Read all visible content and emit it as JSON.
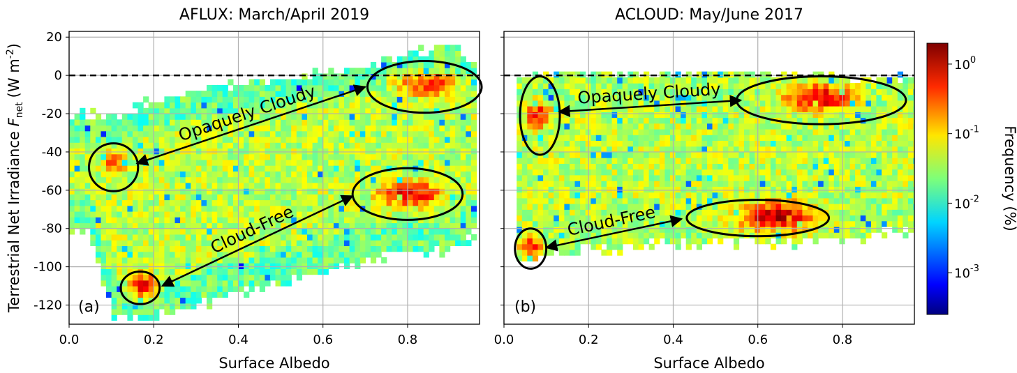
{
  "chart_data": [
    {
      "type": "heatmap",
      "panel_label": "(a)",
      "title": "AFLUX: March/April 2019",
      "xlabel": "Surface Albedo",
      "ylabel": "Terrestrial Net Irradiance",
      "ylabel_symbol": "F",
      "ylabel_subscript": "net",
      "ylabel_unit_open": "(W m",
      "ylabel_unit_exp": "-2",
      "ylabel_unit_close": ")",
      "xlim": [
        0.0,
        0.97
      ],
      "ylim": [
        -130,
        23
      ],
      "xticks": [
        "0.0",
        "0.2",
        "0.4",
        "0.6",
        "0.8"
      ],
      "xtick_values": [
        0.0,
        0.2,
        0.4,
        0.6,
        0.8
      ],
      "yticks": [
        "20",
        "0",
        "-20",
        "-40",
        "-60",
        "-80",
        "-100",
        "-120"
      ],
      "ytick_values": [
        20,
        0,
        -20,
        -40,
        -60,
        -80,
        -100,
        -120
      ],
      "grid": true,
      "reference_line_y": 0,
      "color_scale": "log",
      "data_extent": {
        "x": [
          0.0,
          0.96
        ],
        "y": [
          -128,
          16
        ]
      },
      "envelope": {
        "x": [
          0.04,
          0.1,
          0.2,
          0.3,
          0.4,
          0.5,
          0.6,
          0.7,
          0.8,
          0.9,
          0.96
        ],
        "top": [
          -22,
          -22,
          -14,
          -10,
          -6,
          -3,
          0,
          4,
          10,
          14,
          2
        ],
        "bottom": [
          -80,
          -125,
          -125,
          -118,
          -112,
          -106,
          -100,
          -95,
          -92,
          -90,
          -80
        ]
      },
      "hotspots": [
        {
          "label": "Opaquely Cloudy",
          "x": 0.1,
          "y": -47,
          "peak_log10": -0.45
        },
        {
          "label": "Opaquely Cloudy",
          "x": 0.84,
          "y": -6,
          "peak_log10": -0.35
        },
        {
          "label": "Cloud-Free",
          "x": 0.8,
          "y": -63,
          "peak_log10": -0.15
        },
        {
          "label": "Cloud-Free",
          "x": 0.17,
          "y": -111,
          "peak_log10": -0.3
        }
      ],
      "annotations": [
        {
          "text": "Opaquely Cloudy",
          "from": [
            0.16,
            -46
          ],
          "to": [
            0.7,
            -6
          ]
        },
        {
          "text": "Cloud-Free",
          "from": [
            0.22,
            -110
          ],
          "to": [
            0.67,
            -63
          ]
        }
      ],
      "ellipses": [
        {
          "cx": 0.105,
          "cy": -48,
          "rx": 0.058,
          "ry": 12.5
        },
        {
          "cx": 0.84,
          "cy": -6,
          "rx": 0.135,
          "ry": 13.5
        },
        {
          "cx": 0.8,
          "cy": -62,
          "rx": 0.13,
          "ry": 13.5
        },
        {
          "cx": 0.168,
          "cy": -111,
          "rx": 0.046,
          "ry": 8.5
        }
      ]
    },
    {
      "type": "heatmap",
      "panel_label": "(b)",
      "title": "ACLOUD: May/June 2017",
      "xlabel": "Surface Albedo",
      "xlim": [
        0.0,
        0.97
      ],
      "ylim": [
        -130,
        23
      ],
      "xticks": [
        "0.0",
        "0.2",
        "0.4",
        "0.6",
        "0.8"
      ],
      "xtick_values": [
        0.0,
        0.2,
        0.4,
        0.6,
        0.8
      ],
      "ytick_values": [
        20,
        0,
        -20,
        -40,
        -60,
        -80,
        -100,
        -120
      ],
      "grid": true,
      "reference_line_y": 0,
      "color_scale": "log",
      "data_extent": {
        "x": [
          0.03,
          0.97
        ],
        "y": [
          -97,
          2
        ]
      },
      "envelope": {
        "x": [
          0.03,
          0.1,
          0.3,
          0.5,
          0.7,
          0.9,
          0.97
        ],
        "top": [
          -2,
          0,
          0,
          0,
          0,
          -3,
          -5
        ],
        "bottom": [
          -96,
          -92,
          -88,
          -86,
          -86,
          -81,
          -81
        ]
      },
      "hotspots": [
        {
          "label": "Opaquely Cloudy",
          "x": 0.075,
          "y": -22,
          "peak_log10": -0.3
        },
        {
          "label": "Opaquely Cloudy",
          "x": 0.74,
          "y": -13,
          "peak_log10": -0.05
        },
        {
          "label": "Cloud-Free",
          "x": 0.64,
          "y": -75,
          "peak_log10": 0.1
        },
        {
          "label": "Cloud-Free",
          "x": 0.06,
          "y": -91,
          "peak_log10": -0.4
        }
      ],
      "annotations": [
        {
          "text": "Opaquely Cloudy",
          "from": [
            0.13,
            -19
          ],
          "to": [
            0.56,
            -13
          ]
        },
        {
          "text": "Cloud-Free",
          "from": [
            0.1,
            -90
          ],
          "to": [
            0.42,
            -75
          ]
        }
      ],
      "ellipses": [
        {
          "cx": 0.085,
          "cy": -21,
          "rx": 0.047,
          "ry": 20.5
        },
        {
          "cx": 0.75,
          "cy": -13,
          "rx": 0.2,
          "ry": 12.5
        },
        {
          "cx": 0.6,
          "cy": -74.5,
          "rx": 0.168,
          "ry": 9.5
        },
        {
          "cx": 0.063,
          "cy": -90.5,
          "rx": 0.037,
          "ry": 10.5
        }
      ]
    }
  ],
  "colorbar": {
    "label": "Frequency (%)",
    "scale": "log",
    "colormap": "jet",
    "range_log10": [
      -3.6,
      0.3
    ],
    "ticks": [
      {
        "base": "10",
        "exp": "0",
        "value_log10": 0
      },
      {
        "base": "10",
        "exp": "-1",
        "value_log10": -1
      },
      {
        "base": "10",
        "exp": "-2",
        "value_log10": -2
      },
      {
        "base": "10",
        "exp": "-3",
        "value_log10": -3
      }
    ]
  }
}
